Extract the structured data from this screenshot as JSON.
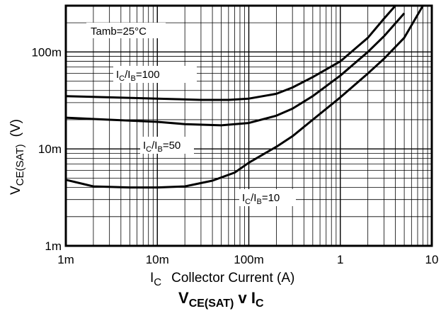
{
  "chart_data": {
    "type": "line",
    "scale": {
      "x": "log",
      "y": "log"
    },
    "xlim": [
      0.001,
      10
    ],
    "ylim": [
      0.001,
      0.3
    ],
    "grid": true,
    "x_ticks": [
      "1m",
      "10m",
      "100m",
      "1",
      "10"
    ],
    "y_ticks": [
      "1m",
      "10m",
      "100m"
    ],
    "xlabel": {
      "symbol": "I",
      "sub": "C",
      "text": "Collector Current (A)"
    },
    "ylabel": {
      "symbol": "V",
      "sub": "CE(SAT)",
      "unit": "(V)"
    },
    "title": {
      "symbol_a": "V",
      "sub_a": "CE(SAT)",
      "mid": " v ",
      "symbol_b": "I",
      "sub_b": "C"
    },
    "annotation": "Tamb=25°C",
    "series": [
      {
        "name": "IC/IB=100",
        "label": {
          "a": "I",
          "a_sub": "C",
          "slash": "/",
          "b": "I",
          "b_sub": "B",
          "value": "=100"
        },
        "x": [
          0.001,
          0.003,
          0.01,
          0.03,
          0.06,
          0.1,
          0.2,
          0.3,
          0.5,
          1,
          2,
          3,
          4
        ],
        "y": [
          0.035,
          0.034,
          0.033,
          0.032,
          0.032,
          0.033,
          0.037,
          0.043,
          0.055,
          0.08,
          0.14,
          0.22,
          0.32
        ]
      },
      {
        "name": "IC/IB=50",
        "label": {
          "a": "I",
          "a_sub": "C",
          "slash": "/",
          "b": "I",
          "b_sub": "B",
          "value": "=50"
        },
        "x": [
          0.001,
          0.003,
          0.01,
          0.02,
          0.05,
          0.1,
          0.2,
          0.3,
          0.5,
          1,
          2,
          3,
          5
        ],
        "y": [
          0.021,
          0.02,
          0.019,
          0.018,
          0.0175,
          0.0185,
          0.022,
          0.026,
          0.035,
          0.057,
          0.1,
          0.145,
          0.25
        ]
      },
      {
        "name": "IC/IB=10",
        "label": {
          "a": "I",
          "a_sub": "C",
          "slash": "/",
          "b": "I",
          "b_sub": "B",
          "value": "=10"
        },
        "x": [
          0.001,
          0.002,
          0.005,
          0.01,
          0.02,
          0.04,
          0.07,
          0.1,
          0.15,
          0.2,
          0.3,
          0.5,
          1,
          2,
          3,
          5,
          8
        ],
        "y": [
          0.0048,
          0.0041,
          0.004,
          0.004,
          0.0041,
          0.0047,
          0.0057,
          0.0072,
          0.009,
          0.0105,
          0.0135,
          0.02,
          0.034,
          0.06,
          0.085,
          0.14,
          0.3
        ]
      }
    ]
  }
}
